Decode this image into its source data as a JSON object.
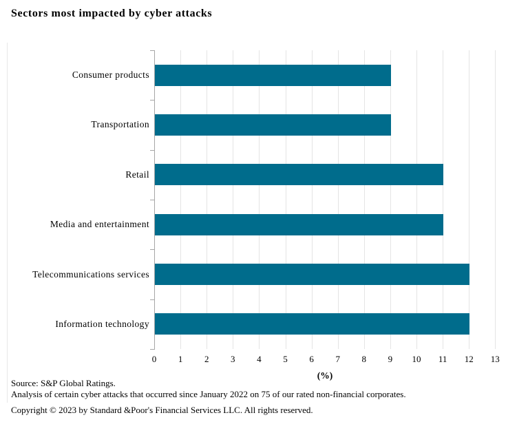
{
  "title": "Sectors most impacted by cyber attacks",
  "chart_data": {
    "type": "bar",
    "orientation": "horizontal",
    "title": "Sectors most impacted by cyber attacks",
    "categories": [
      "Consumer products",
      "Transportation",
      "Retail",
      "Media and entertainment",
      "Telecommunications services",
      "Information technology"
    ],
    "values": [
      9,
      9,
      11,
      11,
      12,
      12
    ],
    "xlabel": "(%)",
    "xlim": [
      0,
      13
    ],
    "xticks": [
      0,
      1,
      2,
      3,
      4,
      5,
      6,
      7,
      8,
      9,
      10,
      11,
      12,
      13
    ],
    "grid": true,
    "legend": "none",
    "bar_color": "#006c8c"
  },
  "colors": {
    "bar": "#006c8c",
    "gridline": "#e4e4e4",
    "axis": "#a6a6a6",
    "text": "#000000",
    "background": "#ffffff"
  },
  "footer": {
    "source": "Source: S&P Global Ratings.",
    "analysis": "Analysis of certain cyber attacks that occurred since January 2022 on 75 of our rated non-financial corporates.",
    "copyright": "Copyright © 2023 by Standard &Poor's Financial Services LLC. All rights reserved."
  }
}
